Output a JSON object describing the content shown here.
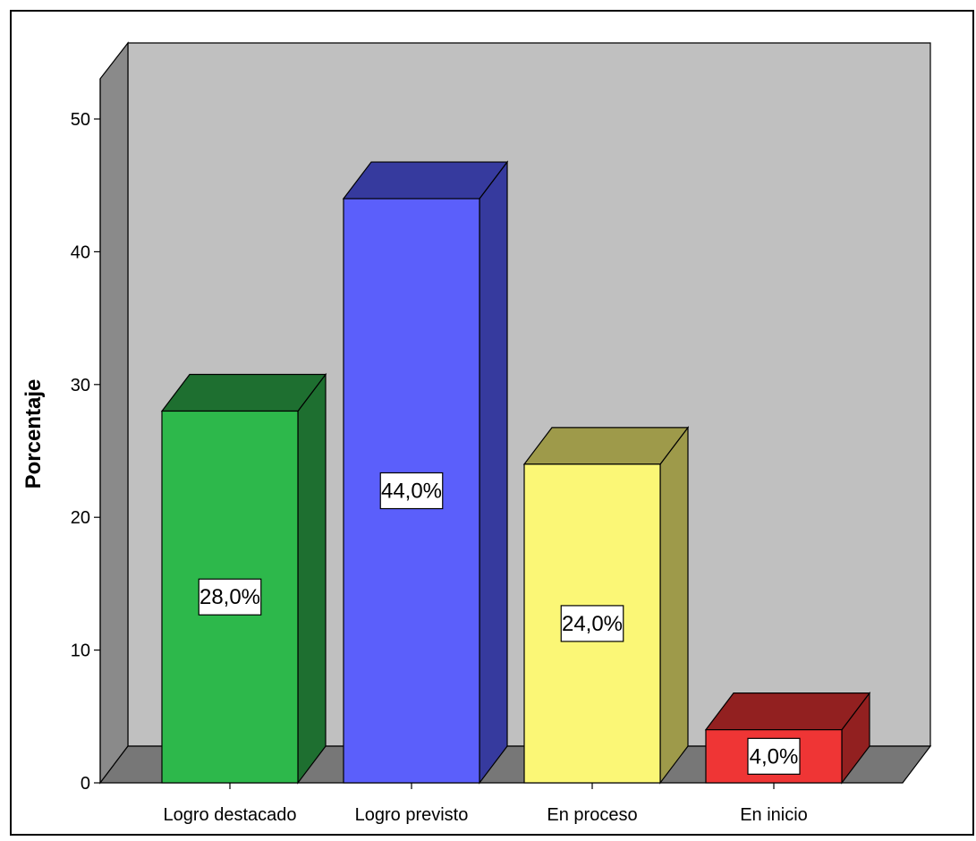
{
  "chart_data": {
    "type": "bar",
    "style": "3d",
    "categories": [
      "Logro destacado",
      "Logro previsto",
      "En proceso",
      "En inicio"
    ],
    "values": [
      28.0,
      44.0,
      24.0,
      4.0
    ],
    "data_labels": [
      "28,0%",
      "44,0%",
      "24,0%",
      "4,0%"
    ],
    "colors": {
      "front": [
        "#2db84b",
        "#5b5ffb",
        "#fbf776",
        "#ef3535"
      ],
      "side": [
        "#1e6f30",
        "#363a9e",
        "#9e9a4a",
        "#922020"
      ]
    },
    "xlabel": "",
    "ylabel": "Porcentaje",
    "ylim": [
      0,
      50
    ],
    "yticks": [
      0,
      10,
      20,
      30,
      40,
      50
    ],
    "grid": false,
    "legend": "none",
    "background": {
      "back_wall": "#c0c0c0",
      "side_wall": "#8a8a8a",
      "floor": "#777777"
    }
  }
}
